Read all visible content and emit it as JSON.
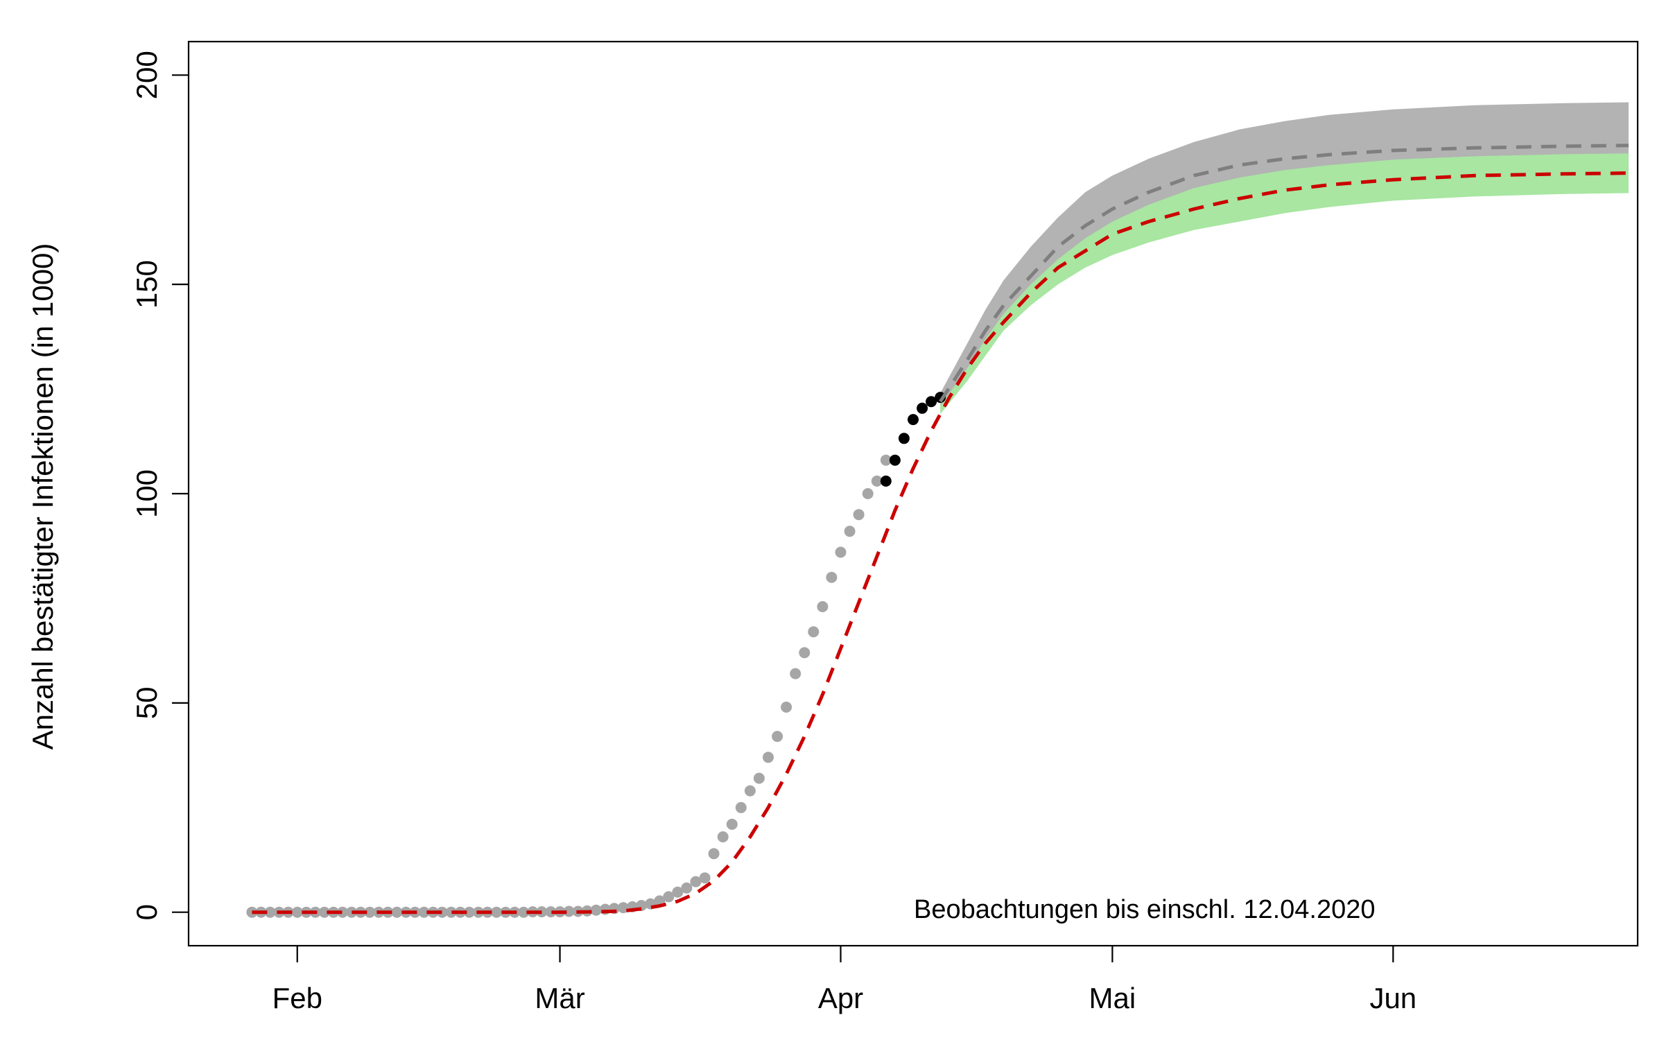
{
  "chart_data": {
    "type": "line",
    "title": "",
    "ylabel": "Anzahl bestätigter Infektionen (in 1000)",
    "xlabel": "",
    "annotation": "Beobachtungen bis einschl. 12.04.2020",
    "ylim": [
      -8,
      208
    ],
    "xlim": [
      "2020-01-20",
      "2020-06-28"
    ],
    "yticks": [
      0,
      50,
      100,
      150,
      200
    ],
    "xticks": [
      {
        "date": "2020-02-01",
        "label": "Feb"
      },
      {
        "date": "2020-03-01",
        "label": "Mär"
      },
      {
        "date": "2020-04-01",
        "label": "Apr"
      },
      {
        "date": "2020-05-01",
        "label": "Mai"
      },
      {
        "date": "2020-06-01",
        "label": "Jun"
      }
    ],
    "colors": {
      "observed_past": "#a6a6a6",
      "observed_recent": "#000000",
      "model_fit": "#cc0000",
      "model_alt": "#7f7f7f",
      "band_alt": "#b3b3b3",
      "band_fit": "#a8e6a1"
    },
    "observations_past": {
      "x": [
        "2020-01-27",
        "2020-01-28",
        "2020-01-29",
        "2020-01-30",
        "2020-01-31",
        "2020-02-01",
        "2020-02-02",
        "2020-02-03",
        "2020-02-04",
        "2020-02-05",
        "2020-02-06",
        "2020-02-07",
        "2020-02-08",
        "2020-02-09",
        "2020-02-10",
        "2020-02-11",
        "2020-02-12",
        "2020-02-13",
        "2020-02-14",
        "2020-02-15",
        "2020-02-16",
        "2020-02-17",
        "2020-02-18",
        "2020-02-19",
        "2020-02-20",
        "2020-02-21",
        "2020-02-22",
        "2020-02-23",
        "2020-02-24",
        "2020-02-25",
        "2020-02-26",
        "2020-02-27",
        "2020-02-28",
        "2020-02-29",
        "2020-03-01",
        "2020-03-02",
        "2020-03-03",
        "2020-03-04",
        "2020-03-05",
        "2020-03-06",
        "2020-03-07",
        "2020-03-08",
        "2020-03-09",
        "2020-03-10",
        "2020-03-11",
        "2020-03-12",
        "2020-03-13",
        "2020-03-14",
        "2020-03-15",
        "2020-03-16",
        "2020-03-17",
        "2020-03-18",
        "2020-03-19",
        "2020-03-20",
        "2020-03-21",
        "2020-03-22",
        "2020-03-23",
        "2020-03-24",
        "2020-03-25",
        "2020-03-26",
        "2020-03-27",
        "2020-03-28",
        "2020-03-29",
        "2020-03-30",
        "2020-03-31",
        "2020-04-01",
        "2020-04-02",
        "2020-04-03",
        "2020-04-04",
        "2020-04-05",
        "2020-04-06"
      ],
      "y": [
        0,
        0,
        0,
        0,
        0,
        0,
        0,
        0,
        0,
        0,
        0,
        0,
        0,
        0,
        0,
        0,
        0,
        0,
        0,
        0,
        0,
        0,
        0,
        0,
        0,
        0,
        0,
        0,
        0,
        0,
        0,
        0.1,
        0.1,
        0.1,
        0.1,
        0.2,
        0.2,
        0.3,
        0.5,
        0.7,
        0.9,
        1.1,
        1.3,
        1.6,
        2.0,
        2.7,
        3.7,
        4.8,
        5.8,
        7.3,
        8.2,
        14,
        18,
        21,
        25,
        29,
        32,
        37,
        42,
        49,
        57,
        62,
        67,
        73,
        80,
        86,
        91,
        95,
        100,
        103,
        108
      ],
      "note": ""
    },
    "observations_recent": {
      "x": [
        "2020-04-06",
        "2020-04-07",
        "2020-04-08",
        "2020-04-09",
        "2020-04-10",
        "2020-04-11",
        "2020-04-12"
      ],
      "y": [
        103.0,
        108.0,
        113.2,
        117.7,
        120.4,
        122.0,
        123.0
      ]
    },
    "series": [
      {
        "name": "",
        "role": "model_fit",
        "x": [
          "2020-01-27",
          "2020-02-15",
          "2020-03-01",
          "2020-03-05",
          "2020-03-08",
          "2020-03-10",
          "2020-03-12",
          "2020-03-14",
          "2020-03-16",
          "2020-03-18",
          "2020-03-20",
          "2020-03-22",
          "2020-03-24",
          "2020-03-26",
          "2020-03-28",
          "2020-03-30",
          "2020-04-01",
          "2020-04-03",
          "2020-04-05",
          "2020-04-07",
          "2020-04-09",
          "2020-04-11",
          "2020-04-13",
          "2020-04-15",
          "2020-04-17",
          "2020-04-19",
          "2020-04-22",
          "2020-04-25",
          "2020-04-28",
          "2020-05-01",
          "2020-05-05",
          "2020-05-10",
          "2020-05-15",
          "2020-05-20",
          "2020-05-25",
          "2020-06-01",
          "2020-06-10",
          "2020-06-20",
          "2020-06-27"
        ],
        "y": [
          0,
          0,
          0,
          0.1,
          0.3,
          0.8,
          1.5,
          2.6,
          4.5,
          7.5,
          12,
          18,
          25,
          33,
          42,
          52,
          63,
          74,
          85,
          96,
          106,
          115,
          123,
          130,
          136,
          141,
          148,
          154,
          158,
          162,
          165,
          168,
          170.5,
          172.5,
          173.8,
          175,
          176,
          176.4,
          176.6
        ]
      },
      {
        "name": "",
        "role": "model_alt",
        "x": [
          "2020-04-12",
          "2020-04-15",
          "2020-04-17",
          "2020-04-19",
          "2020-04-22",
          "2020-04-25",
          "2020-04-28",
          "2020-05-01",
          "2020-05-05",
          "2020-05-10",
          "2020-05-15",
          "2020-05-20",
          "2020-05-25",
          "2020-06-01",
          "2020-06-10",
          "2020-06-20",
          "2020-06-27"
        ],
        "y": [
          122,
          132,
          139,
          145,
          152,
          159,
          164,
          168,
          172,
          176,
          178.5,
          180,
          181,
          182,
          182.6,
          183,
          183.2
        ]
      }
    ],
    "bands": [
      {
        "role": "band_alt",
        "x": [
          "2020-04-12",
          "2020-04-15",
          "2020-04-17",
          "2020-04-19",
          "2020-04-22",
          "2020-04-25",
          "2020-04-28",
          "2020-05-01",
          "2020-05-05",
          "2020-05-10",
          "2020-05-15",
          "2020-05-20",
          "2020-05-25",
          "2020-06-01",
          "2020-06-10",
          "2020-06-20",
          "2020-06-27"
        ],
        "upper": [
          124,
          136,
          144,
          151,
          159,
          166,
          172,
          176,
          180,
          184,
          187,
          189,
          190.5,
          191.8,
          192.8,
          193.3,
          193.5
        ],
        "lower": [
          120,
          130,
          136,
          141,
          148,
          154,
          158,
          162,
          165,
          168,
          170.5,
          172.5,
          173.8,
          175,
          176,
          176.4,
          176.6
        ]
      },
      {
        "role": "band_fit",
        "x": [
          "2020-04-12",
          "2020-04-15",
          "2020-04-17",
          "2020-04-19",
          "2020-04-22",
          "2020-04-25",
          "2020-04-28",
          "2020-05-01",
          "2020-05-05",
          "2020-05-10",
          "2020-05-15",
          "2020-05-20",
          "2020-05-25",
          "2020-06-01",
          "2020-06-10",
          "2020-06-20",
          "2020-06-27"
        ],
        "upper": [
          121,
          130,
          137,
          143,
          150,
          156,
          161,
          165,
          169,
          173,
          175.5,
          177.3,
          178.5,
          179.8,
          180.6,
          181.1,
          181.3
        ],
        "lower": [
          119,
          127,
          133,
          139,
          145,
          150,
          154,
          157,
          160,
          163,
          165,
          167,
          168.5,
          170,
          171,
          171.6,
          171.8
        ]
      }
    ]
  }
}
